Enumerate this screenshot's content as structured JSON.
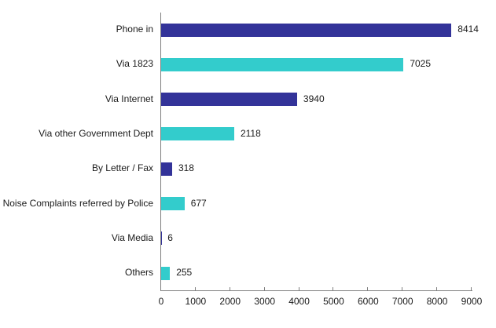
{
  "chart_data": {
    "type": "bar",
    "orientation": "horizontal",
    "title": "",
    "xlabel": "",
    "ylabel": "",
    "xlim": [
      0,
      9000
    ],
    "xticks": [
      0,
      1000,
      2000,
      3000,
      4000,
      5000,
      6000,
      7000,
      8000,
      9000
    ],
    "grid": false,
    "legend": null,
    "categories": [
      "Phone in",
      "Via 1823",
      "Via Internet",
      "Via other Government Dept",
      "By Letter / Fax",
      "Noise Complaints referred by Police",
      "Via Media",
      "Others"
    ],
    "values": [
      8414,
      7025,
      3940,
      2118,
      318,
      677,
      6,
      255
    ],
    "colors": [
      "#333399",
      "#33cccc",
      "#333399",
      "#33cccc",
      "#333399",
      "#33cccc",
      "#333399",
      "#33cccc"
    ],
    "data_labels": [
      "8414",
      "7025",
      "3940",
      "2118",
      "318",
      "677",
      "6",
      "255"
    ]
  },
  "tick_labels": [
    "0",
    "1000",
    "2000",
    "3000",
    "4000",
    "5000",
    "6000",
    "7000",
    "8000",
    "9000"
  ]
}
